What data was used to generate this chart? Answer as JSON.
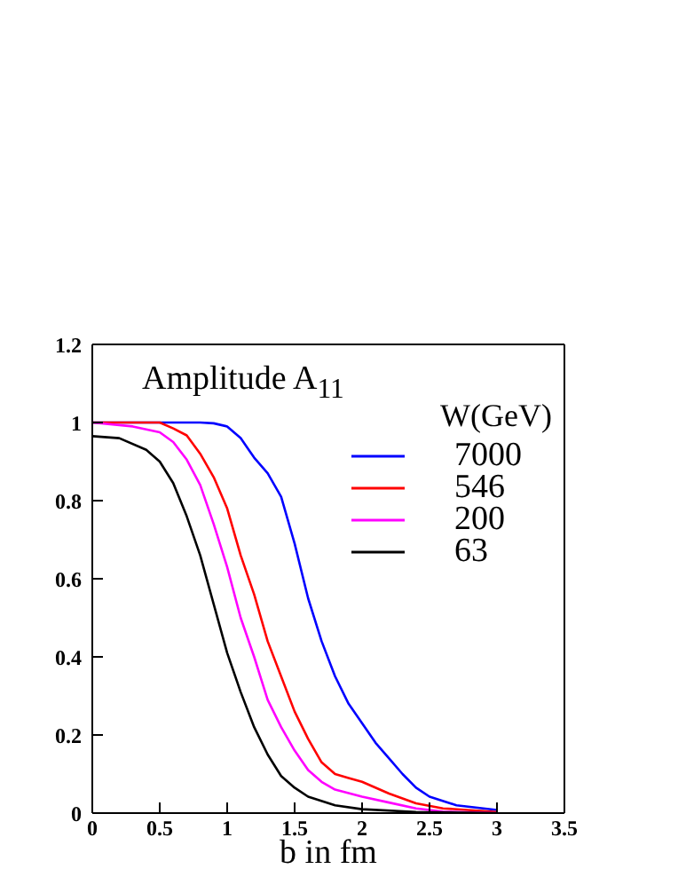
{
  "chart_data": {
    "type": "line",
    "title": "Amplitude A$_{11}$",
    "xlabel": "b in fm",
    "legend_title": "W(GeV)",
    "xlim": [
      0,
      3.5
    ],
    "xticks": [
      0,
      0.5,
      1,
      1.5,
      2,
      2.5,
      3,
      3.5
    ],
    "ylim": [
      0,
      1.2
    ],
    "yticks": [
      0,
      0.2,
      0.4,
      0.6,
      0.8,
      1,
      1.2
    ],
    "grid": false,
    "legend": "top right",
    "marker": "none",
    "line_style": "solid",
    "series": [
      {
        "name": "7000",
        "color": "#0000ff",
        "x": [
          0,
          0.5,
          0.8,
          0.9,
          1,
          1.1,
          1.2,
          1.3,
          1.4,
          1.5,
          1.6,
          1.7,
          1.8,
          1.9,
          2,
          2.1,
          2.2,
          2.3,
          2.4,
          2.5,
          2.7,
          3
        ],
        "values": [
          1,
          1,
          1,
          0.998,
          0.99,
          0.96,
          0.91,
          0.87,
          0.81,
          0.69,
          0.55,
          0.44,
          0.35,
          0.28,
          0.23,
          0.18,
          0.14,
          0.1,
          0.065,
          0.042,
          0.02,
          0.008
        ]
      },
      {
        "name": "546",
        "color": "#ff0000",
        "x": [
          0,
          0.5,
          0.6,
          0.7,
          0.8,
          0.9,
          1,
          1.1,
          1.2,
          1.3,
          1.4,
          1.5,
          1.6,
          1.7,
          1.8,
          1.9,
          2,
          2.2,
          2.4,
          2.6,
          3
        ],
        "values": [
          1,
          1,
          0.985,
          0.967,
          0.92,
          0.86,
          0.78,
          0.66,
          0.56,
          0.44,
          0.35,
          0.26,
          0.19,
          0.13,
          0.1,
          0.09,
          0.08,
          0.05,
          0.025,
          0.012,
          0.003
        ]
      },
      {
        "name": "200",
        "color": "#ff00ff",
        "x": [
          0,
          0.3,
          0.5,
          0.6,
          0.7,
          0.8,
          0.9,
          1,
          1.1,
          1.2,
          1.3,
          1.4,
          1.5,
          1.6,
          1.7,
          1.8,
          2,
          2.2,
          2.4,
          2.6,
          3
        ],
        "values": [
          1,
          0.99,
          0.975,
          0.95,
          0.905,
          0.84,
          0.74,
          0.63,
          0.5,
          0.4,
          0.29,
          0.22,
          0.16,
          0.11,
          0.08,
          0.06,
          0.042,
          0.027,
          0.012,
          0.004,
          0
        ]
      },
      {
        "name": "63",
        "color": "#000000",
        "x": [
          0,
          0.2,
          0.4,
          0.5,
          0.6,
          0.7,
          0.8,
          0.9,
          1,
          1.1,
          1.2,
          1.3,
          1.4,
          1.5,
          1.6,
          1.8,
          2,
          2.4,
          3
        ],
        "values": [
          0.965,
          0.96,
          0.93,
          0.9,
          0.845,
          0.76,
          0.66,
          0.535,
          0.41,
          0.31,
          0.22,
          0.15,
          0.095,
          0.065,
          0.042,
          0.02,
          0.01,
          0.003,
          0
        ]
      }
    ]
  }
}
